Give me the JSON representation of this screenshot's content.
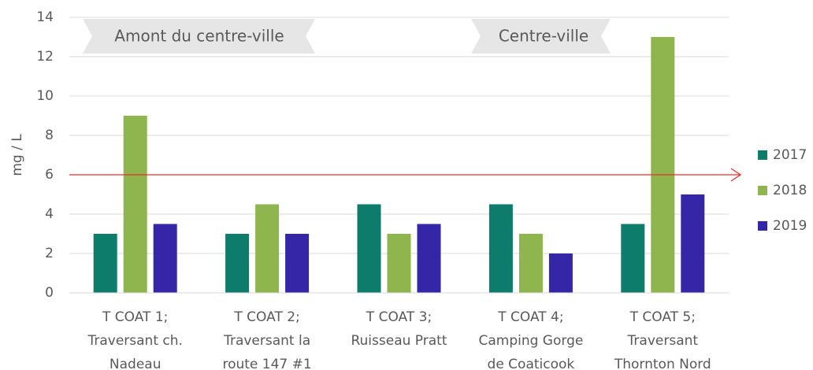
{
  "chart_data": {
    "type": "bar",
    "y_label": "mg / L",
    "categories": [
      "T COAT 1;\nTraversant ch.\nNadeau",
      "T COAT 2;\nTraversant la\nroute 147 #1",
      "T COAT 3;\nRuisseau Pratt",
      "T COAT 4;\nCamping Gorge\nde Coaticook",
      "T COAT 5;\nTraversant\nThornton Nord"
    ],
    "series": [
      {
        "name": "2017",
        "color": "#0e7c6b",
        "values": [
          3,
          3,
          4.5,
          4.5,
          3.5
        ]
      },
      {
        "name": "2018",
        "color": "#8fb54e",
        "values": [
          9,
          4.5,
          3,
          3,
          13
        ]
      },
      {
        "name": "2019",
        "color": "#3526a8",
        "values": [
          3.5,
          3,
          3.5,
          2,
          5
        ]
      }
    ],
    "threshold": {
      "value": 6,
      "color": "#e8312f"
    },
    "annotations": [
      "Amont du centre-ville",
      "Centre-ville"
    ],
    "ylim": [
      0,
      14
    ],
    "yticks": [
      0,
      2,
      4,
      6,
      8,
      10,
      12,
      14
    ],
    "grid": true,
    "legend": "right"
  }
}
